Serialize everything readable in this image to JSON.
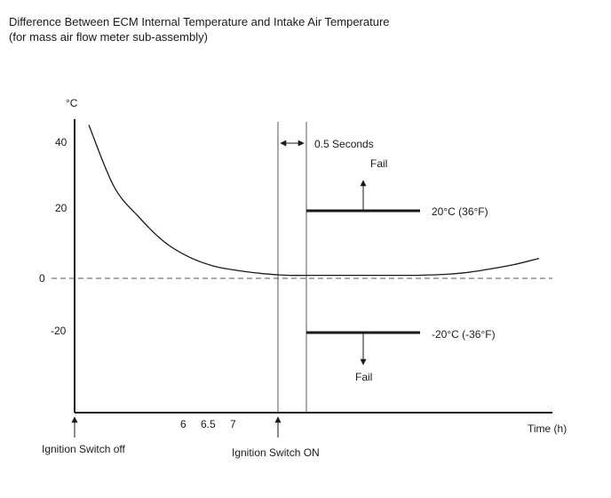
{
  "chart_data": {
    "type": "line",
    "title": "Difference Between ECM Internal Temperature and Intake Air Temperature",
    "subtitle": "(for mass air flow meter sub-assembly)",
    "ylabel": "°C",
    "xlabel": "Time (h)",
    "y_ticks": [
      "40",
      "20",
      "0",
      "-20"
    ],
    "x_ticks": [
      "6",
      "6.5",
      "7"
    ],
    "ylim": [
      -45,
      50
    ],
    "grid": false,
    "zero_line_style": "dashed",
    "series": [
      {
        "values": [
          50,
          30,
          20,
          12,
          7,
          4,
          2.5,
          1.5,
          1.0,
          1.0,
          1.0,
          1.0,
          1.0,
          1.0,
          1.2,
          1.8,
          3.0,
          4.5,
          6.5
        ]
      }
    ],
    "thresholds": [
      {
        "value": 20,
        "label": "20°C (36°F)",
        "fail_label": "Fail",
        "direction": "up"
      },
      {
        "value": -20,
        "label": "-20°C (-36°F)",
        "fail_label": "Fail",
        "direction": "down"
      }
    ],
    "annotations": {
      "ignition_off": "Ignition Switch off",
      "ignition_on": "Ignition Switch ON",
      "delay": "0.5 Seconds"
    }
  }
}
